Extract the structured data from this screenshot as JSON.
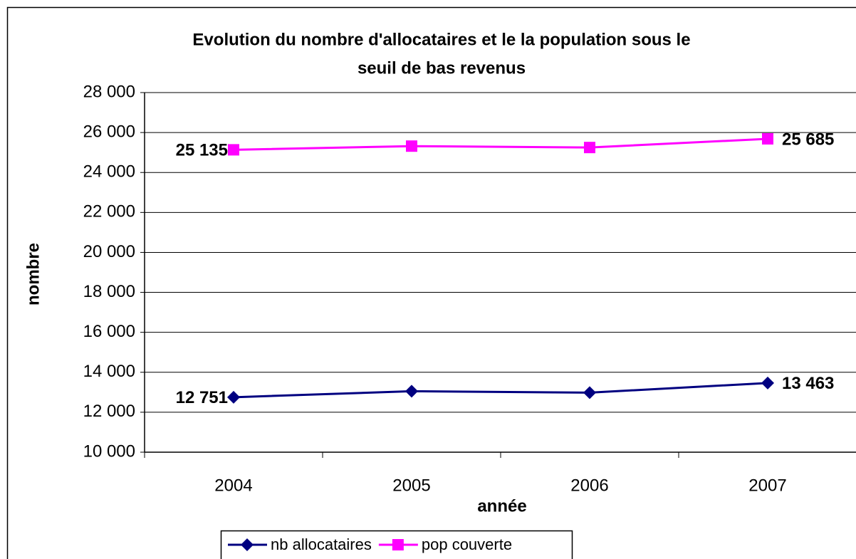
{
  "chart_data": {
    "type": "line",
    "title": [
      "Evolution du nombre d'allocataires et le la population sous le",
      "seuil de bas revenus"
    ],
    "x_label": "année",
    "y_label": "nombre",
    "categories": [
      "2004",
      "2005",
      "2006",
      "2007"
    ],
    "series": [
      {
        "name": "nb allocataires",
        "color": "#000080",
        "marker": "diamond",
        "values": [
          12751,
          13050,
          12980,
          13463
        ],
        "value_labels": [
          "12 751",
          null,
          null,
          "13 463"
        ]
      },
      {
        "name": "pop couverte",
        "color": "#ff00ff",
        "marker": "square",
        "values": [
          25135,
          25320,
          25250,
          25685
        ],
        "value_labels": [
          "25 135",
          null,
          null,
          "25 685"
        ]
      }
    ],
    "ylim": [
      10000,
      28000
    ],
    "yticks": [
      {
        "value": 10000,
        "label": "10 000"
      },
      {
        "value": 12000,
        "label": "12 000"
      },
      {
        "value": 14000,
        "label": "14 000"
      },
      {
        "value": 16000,
        "label": "16 000"
      },
      {
        "value": 18000,
        "label": "18 000"
      },
      {
        "value": 20000,
        "label": "20 000"
      },
      {
        "value": 22000,
        "label": "22 000"
      },
      {
        "value": 24000,
        "label": "24 000"
      },
      {
        "value": 26000,
        "label": "26 000"
      },
      {
        "value": 28000,
        "label": "28 000"
      }
    ],
    "grid": true,
    "legend": "bottom"
  }
}
